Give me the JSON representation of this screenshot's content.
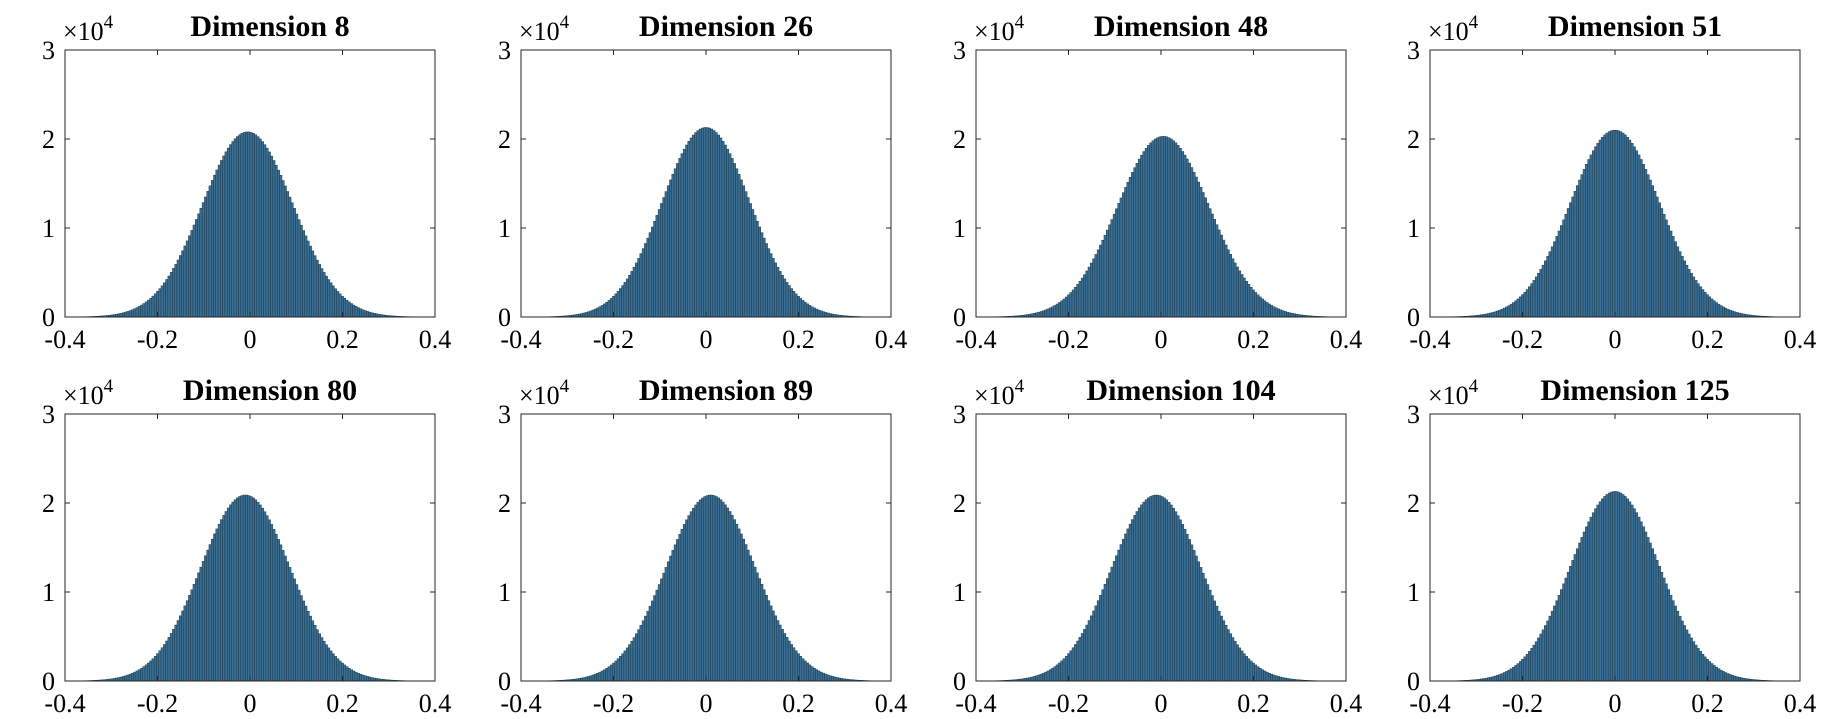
{
  "figure": {
    "bar_color": "#3a6f93",
    "edge_color": "#163447",
    "axis_color": "#262626"
  },
  "chart_data": [
    {
      "type": "bar",
      "title": "Dimension 8",
      "y_exponent_base": "×10",
      "y_exponent_power": "4",
      "xlim": [
        -0.4,
        0.4
      ],
      "ylim": [
        0,
        30000
      ],
      "x_ticks": [
        "-0.4",
        "-0.2",
        "0",
        "0.2",
        "0.4"
      ],
      "y_ticks": [
        "0",
        "1",
        "2",
        "3"
      ],
      "bin_range": [
        -0.37,
        0.37
      ],
      "bins": 150,
      "mean": -0.005,
      "std": 0.098,
      "peak": 20800
    },
    {
      "type": "bar",
      "title": "Dimension 26",
      "y_exponent_base": "×10",
      "y_exponent_power": "4",
      "xlim": [
        -0.4,
        0.4
      ],
      "ylim": [
        0,
        30000
      ],
      "x_ticks": [
        "-0.4",
        "-0.2",
        "0",
        "0.2",
        "0.4"
      ],
      "y_ticks": [
        "0",
        "1",
        "2",
        "3"
      ],
      "bin_range": [
        -0.37,
        0.37
      ],
      "bins": 150,
      "mean": 0.0,
      "std": 0.095,
      "peak": 21300
    },
    {
      "type": "bar",
      "title": "Dimension 48",
      "y_exponent_base": "×10",
      "y_exponent_power": "4",
      "xlim": [
        -0.4,
        0.4
      ],
      "ylim": [
        0,
        30000
      ],
      "x_ticks": [
        "-0.4",
        "-0.2",
        "0",
        "0.2",
        "0.4"
      ],
      "y_ticks": [
        "0",
        "1",
        "2",
        "3"
      ],
      "bin_range": [
        -0.37,
        0.37
      ],
      "bins": 150,
      "mean": 0.005,
      "std": 0.1,
      "peak": 20300
    },
    {
      "type": "bar",
      "title": "Dimension 51",
      "y_exponent_base": "×10",
      "y_exponent_power": "4",
      "xlim": [
        -0.4,
        0.4
      ],
      "ylim": [
        0,
        30000
      ],
      "x_ticks": [
        "-0.4",
        "-0.2",
        "0",
        "0.2",
        "0.4"
      ],
      "y_ticks": [
        "0",
        "1",
        "2",
        "3"
      ],
      "bin_range": [
        -0.37,
        0.37
      ],
      "bins": 150,
      "mean": 0.0,
      "std": 0.097,
      "peak": 21000
    },
    {
      "type": "bar",
      "title": "Dimension 80",
      "y_exponent_base": "×10",
      "y_exponent_power": "4",
      "xlim": [
        -0.4,
        0.4
      ],
      "ylim": [
        0,
        30000
      ],
      "x_ticks": [
        "-0.4",
        "-0.2",
        "0",
        "0.2",
        "0.4"
      ],
      "y_ticks": [
        "0",
        "1",
        "2",
        "3"
      ],
      "bin_range": [
        -0.37,
        0.37
      ],
      "bins": 150,
      "mean": -0.01,
      "std": 0.097,
      "peak": 20900
    },
    {
      "type": "bar",
      "title": "Dimension 89",
      "y_exponent_base": "×10",
      "y_exponent_power": "4",
      "xlim": [
        -0.4,
        0.4
      ],
      "ylim": [
        0,
        30000
      ],
      "x_ticks": [
        "-0.4",
        "-0.2",
        "0",
        "0.2",
        "0.4"
      ],
      "y_ticks": [
        "0",
        "1",
        "2",
        "3"
      ],
      "bin_range": [
        -0.37,
        0.37
      ],
      "bins": 150,
      "mean": 0.01,
      "std": 0.097,
      "peak": 20900
    },
    {
      "type": "bar",
      "title": "Dimension 104",
      "y_exponent_base": "×10",
      "y_exponent_power": "4",
      "xlim": [
        -0.4,
        0.4
      ],
      "ylim": [
        0,
        30000
      ],
      "x_ticks": [
        "-0.4",
        "-0.2",
        "0",
        "0.2",
        "0.4"
      ],
      "y_ticks": [
        "0",
        "1",
        "2",
        "3"
      ],
      "bin_range": [
        -0.37,
        0.37
      ],
      "bins": 150,
      "mean": -0.01,
      "std": 0.097,
      "peak": 20900
    },
    {
      "type": "bar",
      "title": "Dimension 125",
      "y_exponent_base": "×10",
      "y_exponent_power": "4",
      "xlim": [
        -0.4,
        0.4
      ],
      "ylim": [
        0,
        30000
      ],
      "x_ticks": [
        "-0.4",
        "-0.2",
        "0",
        "0.2",
        "0.4"
      ],
      "y_ticks": [
        "0",
        "1",
        "2",
        "3"
      ],
      "bin_range": [
        -0.37,
        0.37
      ],
      "bins": 150,
      "mean": 0.0,
      "std": 0.096,
      "peak": 21300
    }
  ]
}
